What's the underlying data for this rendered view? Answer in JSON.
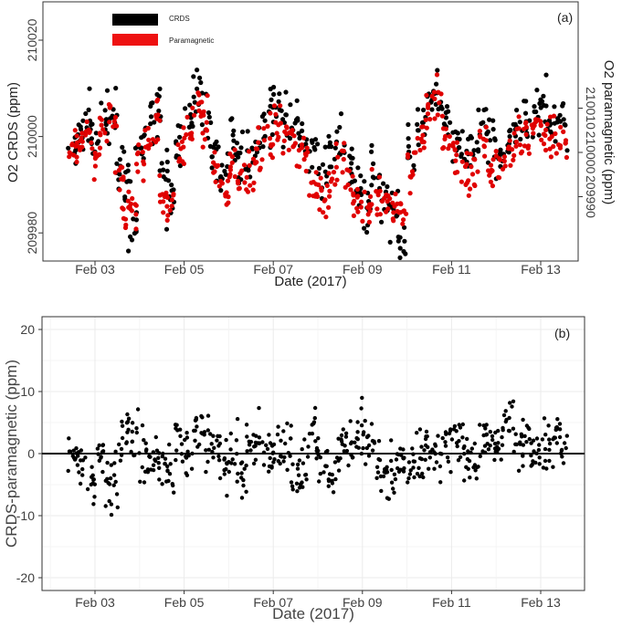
{
  "chart_data": [
    {
      "type": "scatter",
      "panel": "(a)",
      "xlabel": "Date (2017)",
      "ylabel_left": "O2 CRDS (ppm)",
      "ylabel_right": "O2 paramagnetic (ppm)",
      "xticks": [
        "Feb 03",
        "Feb 05",
        "Feb 07",
        "Feb 09",
        "Feb 11",
        "Feb 13"
      ],
      "xlim": [
        "2017-02-02 00:00",
        "2017-02-13 20:00"
      ],
      "yticks_left": [
        209980,
        210000,
        210020
      ],
      "ylim_left": [
        209978,
        210029
      ],
      "yticks_right": [
        209990,
        210000,
        210010
      ],
      "ylim_right": [
        209983,
        210018
      ],
      "legend": [
        "CRDS",
        "Paramagnetic"
      ],
      "legend_position": "top-left",
      "grid": false,
      "series_colors": {
        "CRDS": "#000000",
        "Paramagnetic": "#e00000"
      },
      "series": [
        {
          "name": "CRDS",
          "axis": "left",
          "x_days": [
            0.5,
            0.65,
            0.8,
            1.0,
            1.2,
            1.4,
            1.55,
            1.7,
            1.85,
            2.0,
            2.2,
            2.4,
            2.55,
            2.7,
            2.9,
            3.1,
            3.3,
            3.5,
            3.7,
            3.9,
            4.1,
            4.3,
            4.5,
            4.7,
            4.9,
            5.1,
            5.3,
            5.5,
            5.7,
            5.9,
            6.1,
            6.3,
            6.5,
            6.7,
            6.9,
            7.1,
            7.3,
            7.5,
            7.7,
            7.9,
            8.1,
            8.3,
            8.5,
            8.7,
            8.9,
            9.1,
            9.3,
            9.5,
            9.7,
            9.9,
            10.1,
            10.3,
            10.5,
            10.7,
            10.9,
            11.1,
            11.3,
            11.5
          ],
          "values": [
            209998,
            210001,
            210004,
            209999,
            210003,
            210005,
            209995,
            209988,
            209981,
            209998,
            210004,
            210006,
            209992,
            209986,
            209999,
            210003,
            210009,
            210004,
            209996,
            209993,
            209998,
            209995,
            209997,
            210001,
            210004,
            210007,
            210003,
            210002,
            209999,
            209995,
            209993,
            209997,
            209999,
            209994,
            209989,
            209985,
            209992,
            209987,
            209983,
            209980,
            209996,
            210003,
            210007,
            210009,
            210002,
            209998,
            209995,
            209997,
            210003,
            209999,
            209996,
            209998,
            210001,
            210003,
            210005,
            210007,
            210004,
            210002
          ]
        },
        {
          "name": "Paramagnetic",
          "axis": "right",
          "x_days": [
            0.5,
            0.65,
            0.8,
            1.0,
            1.2,
            1.4,
            1.55,
            1.7,
            1.85,
            2.0,
            2.2,
            2.4,
            2.55,
            2.7,
            2.9,
            3.1,
            3.3,
            3.5,
            3.7,
            3.9,
            4.1,
            4.3,
            4.5,
            4.7,
            4.9,
            5.1,
            5.3,
            5.5,
            5.7,
            5.9,
            6.1,
            6.3,
            6.5,
            6.7,
            6.9,
            7.1,
            7.3,
            7.5,
            7.7,
            7.9,
            8.1,
            8.3,
            8.5,
            8.7,
            8.9,
            9.1,
            9.3,
            9.5,
            9.7,
            9.9,
            10.1,
            10.3,
            10.5,
            10.7,
            10.9,
            11.1,
            11.3,
            11.5
          ],
          "values": [
            210000,
            210003,
            210006,
            209999,
            210005,
            210008,
            209993,
            209986,
            209985,
            209998,
            210004,
            210008,
            209991,
            209988,
            210001,
            210004,
            210012,
            210006,
            209996,
            209992,
            209997,
            209993,
            209995,
            210001,
            210003,
            210007,
            210004,
            210003,
            209999,
            209993,
            209990,
            209994,
            209998,
            209992,
            209989,
            209987,
            209991,
            209988,
            209987,
            209986,
            209997,
            210004,
            210009,
            210011,
            210003,
            209999,
            209995,
            209996,
            210002,
            209998,
            209996,
            209999,
            210002,
            210004,
            210006,
            210006,
            210003,
            210001
          ]
        }
      ]
    },
    {
      "type": "scatter",
      "panel": "(b)",
      "xlabel": "Date (2017)",
      "ylabel": "CRDS-paramagnetic (ppm)",
      "xticks": [
        "Feb 03",
        "Feb 05",
        "Feb 07",
        "Feb 09",
        "Feb 11",
        "Feb 13"
      ],
      "xlim": [
        "2017-02-02 00:00",
        "2017-02-13 20:00"
      ],
      "yticks": [
        -20,
        -10,
        0,
        10,
        20
      ],
      "ylim": [
        -21,
        21
      ],
      "grid": true,
      "reference_line": 0,
      "series": [
        {
          "name": "",
          "color": "#000000",
          "x_days": [
            0.5,
            0.7,
            0.9,
            1.1,
            1.3,
            1.5,
            1.7,
            1.9,
            2.1,
            2.3,
            2.5,
            2.7,
            2.9,
            3.1,
            3.3,
            3.5,
            3.7,
            3.9,
            4.1,
            4.3,
            4.5,
            4.7,
            4.9,
            5.1,
            5.3,
            5.5,
            5.7,
            5.9,
            6.1,
            6.3,
            6.5,
            6.7,
            6.9,
            7.1,
            7.3,
            7.5,
            7.7,
            7.9,
            8.1,
            8.3,
            8.5,
            8.7,
            8.9,
            9.1,
            9.3,
            9.5,
            9.7,
            9.9,
            10.1,
            10.3,
            10.5,
            10.7,
            10.9,
            11.1,
            11.3,
            11.5
          ],
          "values": [
            0.5,
            -2,
            -4,
            1,
            -6,
            -3,
            4,
            3,
            0,
            -1,
            -2,
            -3,
            2,
            -1,
            3,
            2,
            1,
            -2,
            0,
            -3,
            1,
            2,
            -1,
            0,
            1,
            -4,
            -2,
            3,
            -1,
            -5,
            2,
            1,
            4,
            3,
            0,
            -4,
            -2,
            -1,
            -3,
            0,
            2,
            -1,
            1,
            3,
            0,
            -2,
            3,
            1,
            2,
            4,
            -1,
            2,
            0,
            1,
            3,
            2
          ]
        }
      ]
    }
  ]
}
